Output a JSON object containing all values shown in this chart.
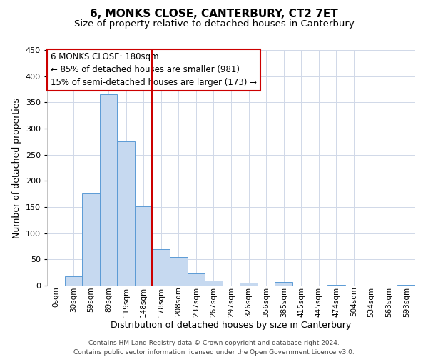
{
  "title": "6, MONKS CLOSE, CANTERBURY, CT2 7ET",
  "subtitle": "Size of property relative to detached houses in Canterbury",
  "xlabel": "Distribution of detached houses by size in Canterbury",
  "ylabel": "Number of detached properties",
  "footer_lines": [
    "Contains HM Land Registry data © Crown copyright and database right 2024.",
    "Contains public sector information licensed under the Open Government Licence v3.0."
  ],
  "bin_labels": [
    "0sqm",
    "30sqm",
    "59sqm",
    "89sqm",
    "119sqm",
    "148sqm",
    "178sqm",
    "208sqm",
    "237sqm",
    "267sqm",
    "297sqm",
    "326sqm",
    "356sqm",
    "385sqm",
    "415sqm",
    "445sqm",
    "474sqm",
    "504sqm",
    "534sqm",
    "563sqm",
    "593sqm"
  ],
  "bar_values": [
    0,
    18,
    176,
    365,
    275,
    152,
    70,
    55,
    23,
    9,
    0,
    6,
    0,
    7,
    0,
    0,
    1,
    0,
    0,
    0,
    1
  ],
  "bar_color": "#c6d9f0",
  "bar_edge_color": "#5b9bd5",
  "ylim": [
    0,
    450
  ],
  "yticks": [
    0,
    50,
    100,
    150,
    200,
    250,
    300,
    350,
    400,
    450
  ],
  "vline_x": 6,
  "vline_color": "#cc0000",
  "annotation_title": "6 MONKS CLOSE: 180sqm",
  "annotation_line1": "← 85% of detached houses are smaller (981)",
  "annotation_line2": "15% of semi-detached houses are larger (173) →",
  "annotation_box_color": "#ffffff",
  "annotation_box_edge": "#cc0000",
  "background_color": "#ffffff",
  "grid_color": "#d0d8e8",
  "title_fontsize": 11,
  "subtitle_fontsize": 9.5,
  "xlabel_fontsize": 9,
  "ylabel_fontsize": 9,
  "annotation_fontsize": 8.5,
  "tick_fontsize": 7.5,
  "ytick_fontsize": 8
}
